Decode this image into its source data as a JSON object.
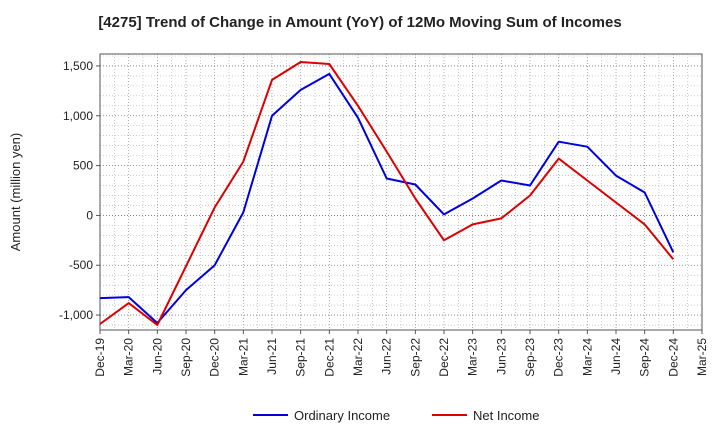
{
  "chart_data": {
    "type": "line",
    "title": "[4275]  Trend of Change in Amount (YoY) of 12Mo Moving Sum of Incomes",
    "ylabel": "Amount (million yen)",
    "xlabel": "",
    "categories": [
      "Dec-19",
      "Mar-20",
      "Jun-20",
      "Sep-20",
      "Dec-20",
      "Mar-21",
      "Jun-21",
      "Sep-21",
      "Dec-21",
      "Mar-22",
      "Jun-22",
      "Sep-22",
      "Dec-22",
      "Mar-23",
      "Jun-23",
      "Sep-23",
      "Dec-23",
      "Mar-24",
      "Jun-24",
      "Sep-24",
      "Dec-24",
      "Mar-25"
    ],
    "ylim": [
      -1150,
      1620
    ],
    "yticks": [
      -1000,
      -500,
      0,
      500,
      1000,
      1500
    ],
    "ytick_labels": [
      "-1,000",
      "-500",
      "0",
      "500",
      "1,000",
      "1,500"
    ],
    "grid": true,
    "legend_position": "bottom",
    "series": [
      {
        "name": "Ordinary Income",
        "color": "#0000dd",
        "values": [
          -830,
          -820,
          -1080,
          -750,
          -500,
          30,
          1000,
          1260,
          1420,
          980,
          370,
          310,
          10,
          170,
          350,
          300,
          740,
          690,
          400,
          230,
          -370,
          null
        ]
      },
      {
        "name": "Net Income",
        "color": "#dd0000",
        "values": [
          -1090,
          -880,
          -1100,
          -510,
          80,
          540,
          1360,
          1540,
          1520,
          1100,
          640,
          170,
          -250,
          -90,
          -30,
          200,
          570,
          350,
          130,
          -90,
          -440,
          null
        ]
      }
    ]
  }
}
